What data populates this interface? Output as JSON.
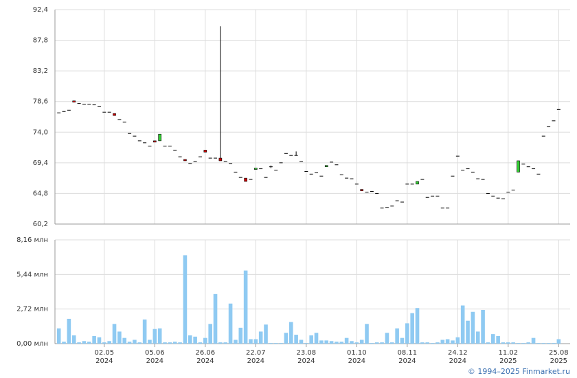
{
  "chart_data": {
    "type": "candlestick",
    "categories": [
      null,
      null,
      null,
      null,
      null,
      null,
      null,
      null,
      null,
      "02.05",
      null,
      null,
      null,
      null,
      null,
      null,
      null,
      null,
      null,
      "05.06",
      null,
      null,
      null,
      null,
      null,
      null,
      null,
      null,
      null,
      "26.06",
      null,
      null,
      null,
      null,
      null,
      null,
      null,
      null,
      null,
      "22.07",
      null,
      null,
      null,
      null,
      null,
      null,
      null,
      null,
      null,
      "23.08",
      null,
      null,
      null,
      null,
      null,
      null,
      null,
      null,
      null,
      "01.10",
      null,
      null,
      null,
      null,
      null,
      null,
      null,
      null,
      null,
      "08.11",
      null,
      null,
      null,
      null,
      null,
      null,
      null,
      null,
      null,
      "24.12",
      null,
      null,
      null,
      null,
      null,
      null,
      null,
      null,
      null,
      "11.02",
      null,
      null,
      null,
      null,
      null,
      null,
      null,
      null,
      null,
      "25.08"
    ],
    "category_years": [
      null,
      null,
      null,
      null,
      null,
      null,
      null,
      null,
      null,
      "2024",
      null,
      null,
      null,
      null,
      null,
      null,
      null,
      null,
      null,
      "2024",
      null,
      null,
      null,
      null,
      null,
      null,
      null,
      null,
      null,
      "2024",
      null,
      null,
      null,
      null,
      null,
      null,
      null,
      null,
      null,
      "2024",
      null,
      null,
      null,
      null,
      null,
      null,
      null,
      null,
      null,
      "2024",
      null,
      null,
      null,
      null,
      null,
      null,
      null,
      null,
      null,
      "2024",
      null,
      null,
      null,
      null,
      null,
      null,
      null,
      null,
      null,
      "2024",
      null,
      null,
      null,
      null,
      null,
      null,
      null,
      null,
      null,
      "2024",
      null,
      null,
      null,
      null,
      null,
      null,
      null,
      null,
      null,
      "2025",
      null,
      null,
      null,
      null,
      null,
      null,
      null,
      null,
      null,
      "2025"
    ],
    "open": [
      76.9,
      77.1,
      77.3,
      78.7,
      78.3,
      78.2,
      78.2,
      78.1,
      77.9,
      77.0,
      77.0,
      76.8,
      75.9,
      75.5,
      73.8,
      73.4,
      72.7,
      72.4,
      71.9,
      72.7,
      72.7,
      71.9,
      71.9,
      71.3,
      70.3,
      69.9,
      69.3,
      69.6,
      70.3,
      71.3,
      70.1,
      70.1,
      70.1,
      69.6,
      69.3,
      68.0,
      67.2,
      67.1,
      66.9,
      68.4,
      68.5,
      67.2,
      68.8,
      68.3,
      69.4,
      70.8,
      70.5,
      70.5,
      69.6,
      68.1,
      67.7,
      67.9,
      67.4,
      68.8,
      69.5,
      69.1,
      67.6,
      67.1,
      67.0,
      66.2,
      65.4,
      65.0,
      65.1,
      64.8,
      62.6,
      62.7,
      62.9,
      63.7,
      63.5,
      66.2,
      66.2,
      66.2,
      66.9,
      64.2,
      64.4,
      64.4,
      62.6,
      62.6,
      67.4,
      70.4,
      68.3,
      68.5,
      68.0,
      67.0,
      66.9,
      64.8,
      64.4,
      64.1,
      64.0,
      65.0,
      65.3,
      68.0,
      69.2,
      68.8,
      68.5,
      67.7,
      73.4,
      74.8,
      75.7,
      77.4
    ],
    "high": [
      76.9,
      77.1,
      77.3,
      78.7,
      78.3,
      78.2,
      78.2,
      78.1,
      77.9,
      77.0,
      77.0,
      76.8,
      75.9,
      75.5,
      73.8,
      73.4,
      72.7,
      72.4,
      71.9,
      72.7,
      73.7,
      71.9,
      71.9,
      71.3,
      70.3,
      69.9,
      69.3,
      69.6,
      70.3,
      71.3,
      70.1,
      70.1,
      89.9,
      69.6,
      69.3,
      68.0,
      67.2,
      67.1,
      66.9,
      68.6,
      68.5,
      67.2,
      69.0,
      68.3,
      69.4,
      70.8,
      70.5,
      71.1,
      69.6,
      68.1,
      67.7,
      67.9,
      67.4,
      69.0,
      69.5,
      69.1,
      67.6,
      67.1,
      67.0,
      66.2,
      65.4,
      65.0,
      65.1,
      64.8,
      62.6,
      62.7,
      62.9,
      63.7,
      63.5,
      66.2,
      66.2,
      66.6,
      66.9,
      64.2,
      64.4,
      64.4,
      62.6,
      62.6,
      67.4,
      70.4,
      68.3,
      68.5,
      68.0,
      67.0,
      66.9,
      64.8,
      64.4,
      64.1,
      64.0,
      65.0,
      65.3,
      69.7,
      69.2,
      68.8,
      68.5,
      67.7,
      73.4,
      74.8,
      75.7,
      77.4
    ],
    "low": [
      76.9,
      77.1,
      77.3,
      78.5,
      78.3,
      78.2,
      78.2,
      78.1,
      77.9,
      77.0,
      77.0,
      76.5,
      75.9,
      75.5,
      73.8,
      73.4,
      72.7,
      72.4,
      71.9,
      72.5,
      72.7,
      71.9,
      71.9,
      71.3,
      70.3,
      69.7,
      69.3,
      69.6,
      70.3,
      71.0,
      70.1,
      70.1,
      69.7,
      69.6,
      69.3,
      68.0,
      67.2,
      66.6,
      66.9,
      68.4,
      68.5,
      67.2,
      68.6,
      68.3,
      69.4,
      70.8,
      70.5,
      70.5,
      69.6,
      68.1,
      67.7,
      67.9,
      67.4,
      68.8,
      69.5,
      69.1,
      67.6,
      67.1,
      67.0,
      66.2,
      65.2,
      65.0,
      65.1,
      64.8,
      62.6,
      62.7,
      62.9,
      63.7,
      63.5,
      66.2,
      66.2,
      66.2,
      66.9,
      64.2,
      64.4,
      64.4,
      62.6,
      62.6,
      67.4,
      70.4,
      68.3,
      68.5,
      68.0,
      67.0,
      66.9,
      64.8,
      64.4,
      64.1,
      64.0,
      65.0,
      65.3,
      68.0,
      69.2,
      68.8,
      68.5,
      67.7,
      73.4,
      74.8,
      75.7,
      77.4
    ],
    "close": [
      76.9,
      77.1,
      77.3,
      78.5,
      78.3,
      78.2,
      78.2,
      78.1,
      77.9,
      77.0,
      77.0,
      76.5,
      75.9,
      75.5,
      73.8,
      73.4,
      72.7,
      72.4,
      71.9,
      72.5,
      73.7,
      71.9,
      71.9,
      71.3,
      70.3,
      69.7,
      69.3,
      69.6,
      70.3,
      71.0,
      70.1,
      70.1,
      69.7,
      69.6,
      69.3,
      68.0,
      67.2,
      66.6,
      66.9,
      68.6,
      68.5,
      67.2,
      68.8,
      68.3,
      69.4,
      70.8,
      70.5,
      70.5,
      69.6,
      68.1,
      67.7,
      67.9,
      67.4,
      69.0,
      69.5,
      69.1,
      67.6,
      67.1,
      67.0,
      66.2,
      65.2,
      65.0,
      65.1,
      64.8,
      62.6,
      62.7,
      62.9,
      63.7,
      63.5,
      66.2,
      66.2,
      66.6,
      66.9,
      64.2,
      64.4,
      64.4,
      62.6,
      62.6,
      67.4,
      70.4,
      68.3,
      68.5,
      68.0,
      67.0,
      66.9,
      64.8,
      64.4,
      64.1,
      64.0,
      65.0,
      65.3,
      69.7,
      69.2,
      68.8,
      68.5,
      67.7,
      73.4,
      74.8,
      75.7,
      77.4
    ],
    "volume": [
      1.2,
      0.15,
      1.95,
      0.65,
      0.1,
      0.2,
      0.15,
      0.6,
      0.5,
      0.1,
      0.2,
      1.55,
      0.95,
      0.45,
      0.15,
      0.3,
      0.1,
      1.9,
      0.3,
      1.15,
      1.2,
      0.1,
      0.1,
      0.15,
      0.1,
      6.95,
      0.65,
      0.55,
      0.1,
      0.45,
      1.55,
      3.9,
      0.1,
      0.1,
      3.15,
      0.3,
      1.25,
      5.75,
      0.35,
      0.35,
      0.95,
      1.5,
      0.05,
      0.05,
      0.05,
      0.85,
      1.7,
      0.7,
      0.3,
      0.05,
      0.65,
      0.85,
      0.25,
      0.25,
      0.2,
      0.15,
      0.15,
      0.45,
      0.2,
      0.1,
      0.3,
      1.55,
      0.05,
      0.1,
      0.1,
      0.85,
      0.1,
      1.2,
      0.45,
      1.6,
      2.4,
      2.8,
      0.1,
      0.1,
      0.05,
      0.1,
      0.3,
      0.35,
      0.25,
      0.5,
      3.0,
      1.8,
      2.5,
      0.95,
      2.65,
      0.1,
      0.75,
      0.6,
      0.1,
      0.1,
      0.1,
      0.05,
      0.05,
      0.1,
      0.45,
      0.05,
      0.05,
      0.05,
      0.05,
      0.35
    ],
    "up_color": "#33cc33",
    "down_color": "#cc0000",
    "volume_color": "#8fcaf2",
    "ylim": [
      60.2,
      92.4
    ],
    "yticks": [
      {
        "value": 60.2,
        "label": "60,2"
      },
      {
        "value": 64.8,
        "label": "64,8"
      },
      {
        "value": 69.4,
        "label": "69,4"
      },
      {
        "value": 74.0,
        "label": "74,0"
      },
      {
        "value": 78.6,
        "label": "78,6"
      },
      {
        "value": 83.2,
        "label": "83,2"
      },
      {
        "value": 87.8,
        "label": "87,8"
      },
      {
        "value": 92.4,
        "label": "92,4"
      }
    ],
    "y2lim": [
      0,
      8.16
    ],
    "y2ticks": [
      {
        "value": 0,
        "label": "0,00 млн"
      },
      {
        "value": 2.72,
        "label": "2,72 млн"
      },
      {
        "value": 5.44,
        "label": "5,44 млн"
      },
      {
        "value": 8.16,
        "label": "8,16 млн"
      }
    ],
    "grid": true,
    "footer": "© 1994–2025 Finmarket.ru"
  }
}
